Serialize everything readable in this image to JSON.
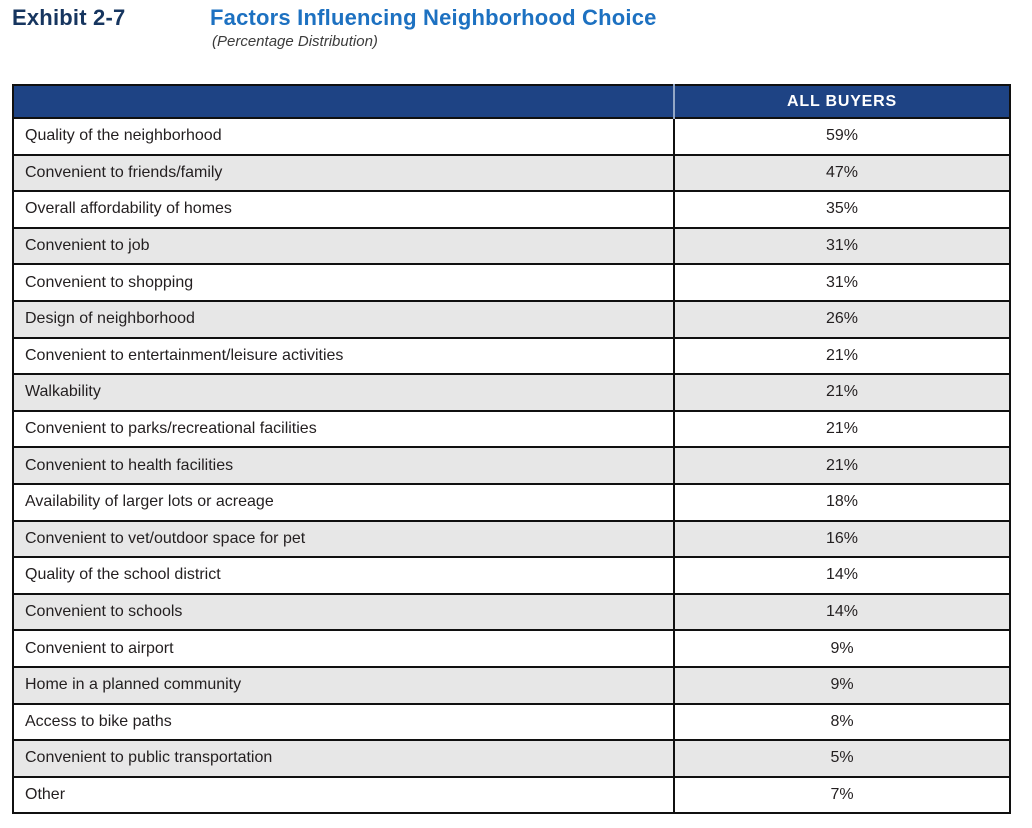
{
  "exhibit": {
    "label": "Exhibit 2-7",
    "title": "Factors Influencing Neighborhood Choice",
    "subtitle": "(Percentage Distribution)"
  },
  "table": {
    "value_header": "ALL BUYERS",
    "rows": [
      {
        "label": "Quality of the neighborhood",
        "value": "59%"
      },
      {
        "label": "Convenient to friends/family",
        "value": "47%"
      },
      {
        "label": "Overall affordability of homes",
        "value": "35%"
      },
      {
        "label": "Convenient to job",
        "value": "31%"
      },
      {
        "label": "Convenient to shopping",
        "value": "31%"
      },
      {
        "label": "Design of neighborhood",
        "value": "26%"
      },
      {
        "label": "Convenient to entertainment/leisure activities",
        "value": "21%"
      },
      {
        "label": "Walkability",
        "value": "21%"
      },
      {
        "label": "Convenient to parks/recreational facilities",
        "value": "21%"
      },
      {
        "label": "Convenient to health facilities",
        "value": "21%"
      },
      {
        "label": "Availability of larger lots or acreage",
        "value": "18%"
      },
      {
        "label": "Convenient to vet/outdoor space for pet",
        "value": "16%"
      },
      {
        "label": "Quality of the school district",
        "value": "14%"
      },
      {
        "label": "Convenient to schools",
        "value": "14%"
      },
      {
        "label": "Convenient to airport",
        "value": "9%"
      },
      {
        "label": "Home in a planned community",
        "value": "9%"
      },
      {
        "label": "Access to bike paths",
        "value": "8%"
      },
      {
        "label": "Convenient to public transportation",
        "value": "5%"
      },
      {
        "label": "Other",
        "value": "7%"
      }
    ]
  },
  "chart_data": {
    "type": "table",
    "title": "Exhibit 2-7  Factors Influencing Neighborhood Choice (Percentage Distribution)",
    "columns": [
      "Factor",
      "ALL BUYERS"
    ],
    "categories": [
      "Quality of the neighborhood",
      "Convenient to friends/family",
      "Overall affordability of homes",
      "Convenient to job",
      "Convenient to shopping",
      "Design of neighborhood",
      "Convenient to entertainment/leisure activities",
      "Walkability",
      "Convenient to parks/recreational facilities",
      "Convenient to health facilities",
      "Availability of larger lots or acreage",
      "Convenient to vet/outdoor space for pet",
      "Quality of the school district",
      "Convenient to schools",
      "Convenient to airport",
      "Home in a planned community",
      "Access to bike paths",
      "Convenient to public transportation",
      "Other"
    ],
    "values": [
      59,
      47,
      35,
      31,
      31,
      26,
      21,
      21,
      21,
      21,
      18,
      16,
      14,
      14,
      9,
      9,
      8,
      5,
      7
    ],
    "unit": "%"
  },
  "colors": {
    "header_bg": "#1e4384",
    "header_text": "#ffffff",
    "header_divider": "#93a7c6",
    "exhibit_label_navy": "#16355f",
    "title_blue": "#1d71c1",
    "subtitle_gray": "#3c3c3c",
    "row_alt_bg": "#e7e7e7",
    "row_bg": "#ffffff",
    "border_black": "#101010",
    "body_text": "#231f20"
  }
}
